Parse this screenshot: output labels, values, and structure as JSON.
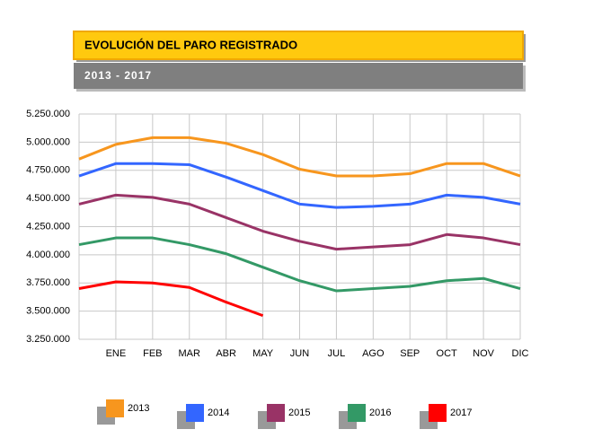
{
  "chart_data": {
    "type": "line",
    "title": "EVOLUCIÓN DEL PARO REGISTRADO",
    "subtitle": "2013 - 2017",
    "categories": [
      null,
      "ENE",
      "FEB",
      "MAR",
      "ABR",
      "MAY",
      "JUN",
      "JUL",
      "AGO",
      "SEP",
      "OCT",
      "NOV",
      "DIC"
    ],
    "series": [
      {
        "name": "2013",
        "color": "#f7961e",
        "values": [
          4850000,
          4980000,
          5040000,
          5040000,
          4990000,
          4890000,
          4760000,
          4700000,
          4700000,
          4720000,
          4810000,
          4810000,
          4700000
        ]
      },
      {
        "name": "2014",
        "color": "#3366ff",
        "values": [
          4700000,
          4810000,
          4810000,
          4800000,
          4690000,
          4570000,
          4450000,
          4420000,
          4430000,
          4450000,
          4530000,
          4510000,
          4450000
        ]
      },
      {
        "name": "2015",
        "color": "#993366",
        "values": [
          4450000,
          4530000,
          4510000,
          4450000,
          4330000,
          4210000,
          4120000,
          4050000,
          4070000,
          4090000,
          4180000,
          4150000,
          4090000
        ]
      },
      {
        "name": "2016",
        "color": "#339966",
        "values": [
          4090000,
          4150000,
          4150000,
          4090000,
          4010000,
          3890000,
          3770000,
          3680000,
          3700000,
          3720000,
          3770000,
          3790000,
          3700000
        ]
      },
      {
        "name": "2017",
        "color": "#ff0000",
        "values": [
          3700000,
          3760000,
          3750000,
          3710000,
          3580000,
          3460000,
          null,
          null,
          null,
          null,
          null,
          null,
          null
        ]
      }
    ],
    "ylim": [
      3250000,
      5250000
    ],
    "yticks": [
      {
        "value": 3250000,
        "label": "3.250.000"
      },
      {
        "value": 3500000,
        "label": "3.500.000"
      },
      {
        "value": 3750000,
        "label": "3.750.000"
      },
      {
        "value": 4000000,
        "label": "4.000.000"
      },
      {
        "value": 4250000,
        "label": "4.250.000"
      },
      {
        "value": 4500000,
        "label": "4.500.000"
      },
      {
        "value": 4750000,
        "label": "4.750.000"
      },
      {
        "value": 5000000,
        "label": "5.000.000"
      },
      {
        "value": 5250000,
        "label": "5.250.000"
      }
    ],
    "grid": true,
    "legend": "bottom"
  }
}
